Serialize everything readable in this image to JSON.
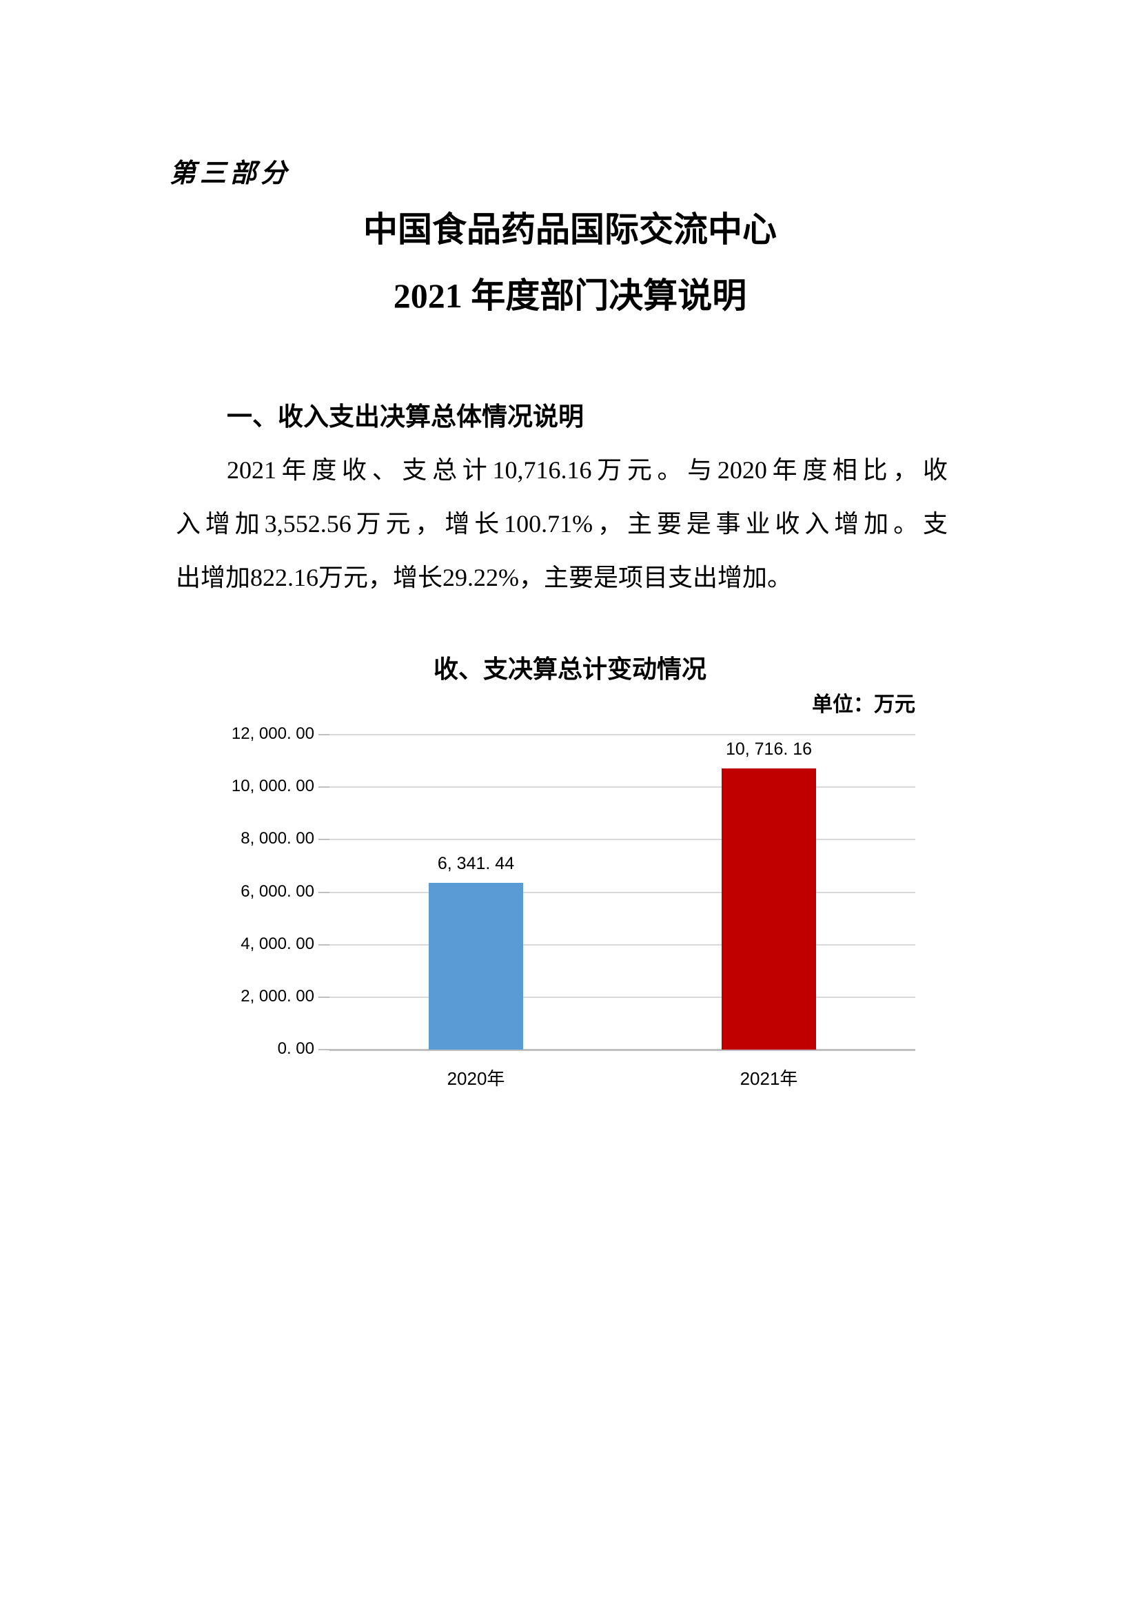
{
  "document": {
    "part_label": "第三部分",
    "title_line1": "中国食品药品国际交流中心",
    "title_line2": "2021 年度部门决算说明",
    "section_heading": "一、收入支出决算总体情况说明",
    "paragraph_lines": [
      "2021年度收、支总计10,716.16万元。与2020年度相比，收",
      "入增加3,552.56万元，增长100.71%，主要是事业收入增加。支",
      "出增加822.16万元，增长29.22%，主要是项目支出增加。"
    ]
  },
  "chart_data": {
    "type": "bar",
    "title": "收、支决算总计变动情况",
    "unit_label": "单位：万元",
    "categories": [
      "2020年",
      "2021年"
    ],
    "values": [
      6341.44,
      10716.16
    ],
    "value_labels": [
      "6, 341. 44",
      "10, 716. 16"
    ],
    "bar_colors": [
      "#5B9BD5",
      "#C00000"
    ],
    "ylim": [
      0,
      12000
    ],
    "ytick_step": 2000,
    "ytick_labels": [
      "0. 00",
      "2, 000. 00",
      "4, 000. 00",
      "6, 000. 00",
      "8, 000. 00",
      "10, 000. 00",
      "12, 000. 00"
    ],
    "grid": true,
    "legend_position": "none",
    "gridline_color": "#D9D9D9",
    "axisline_color": "#BFBFBF"
  }
}
